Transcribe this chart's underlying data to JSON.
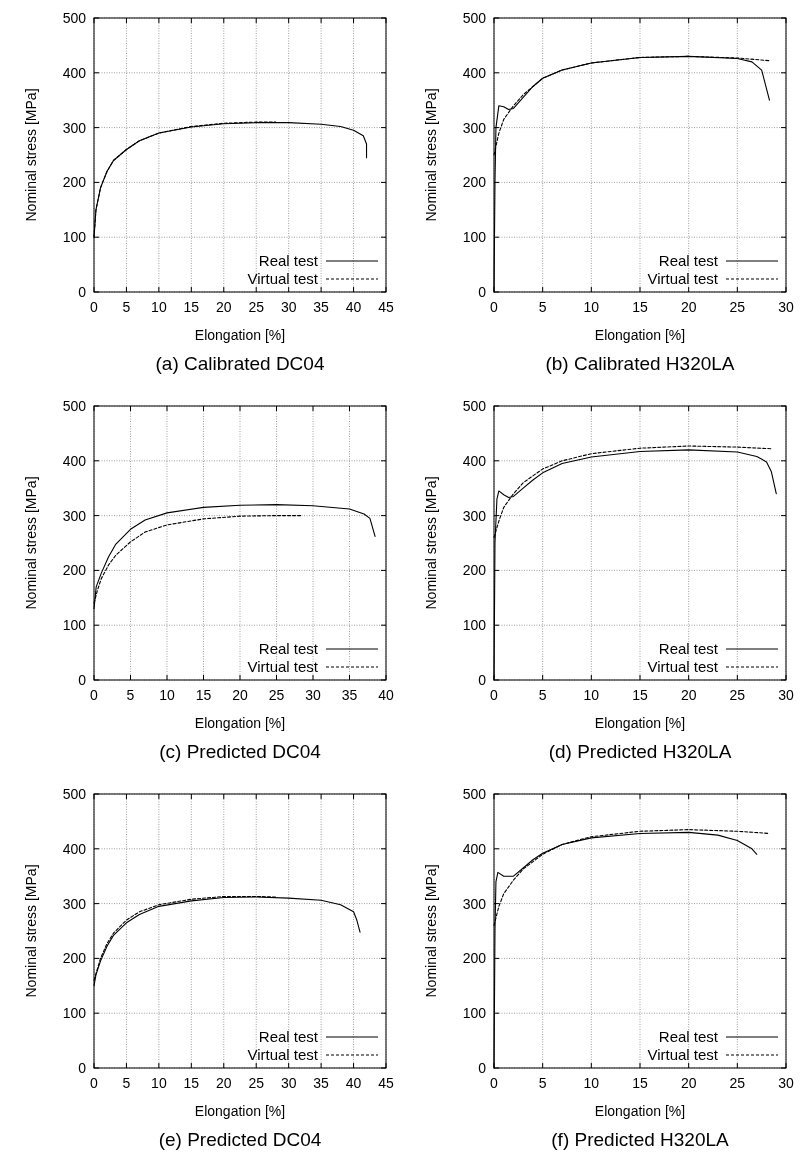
{
  "chart_data": [
    {
      "type": "line",
      "title": "(a) Calibrated DC04",
      "xlabel": "Elongation [%]",
      "ylabel": "Nominal stress [MPa]",
      "xlim": [
        0,
        45
      ],
      "xticks": [
        0,
        5,
        10,
        15,
        20,
        25,
        30,
        35,
        40,
        45
      ],
      "ylim": [
        0,
        500
      ],
      "yticks": [
        0,
        100,
        200,
        300,
        400,
        500
      ],
      "grid": true,
      "legend": "bottom right",
      "series": [
        {
          "name": "Real test",
          "color": "#000000",
          "line_style": "solid",
          "x": [
            0,
            0.3,
            1,
            2,
            3,
            5,
            7,
            10,
            15,
            20,
            25,
            30,
            35,
            38,
            40,
            41.5,
            42,
            42
          ],
          "values": [
            100,
            150,
            190,
            220,
            240,
            260,
            276,
            290,
            301,
            307,
            309,
            309,
            306,
            302,
            295,
            285,
            270,
            245
          ]
        },
        {
          "name": "Virtual test",
          "color": "#000000",
          "line_style": "dashed",
          "x": [
            0,
            0.3,
            1,
            2,
            3,
            5,
            7,
            10,
            15,
            20,
            25,
            28
          ],
          "values": [
            100,
            150,
            190,
            220,
            240,
            260,
            276,
            290,
            302,
            308,
            310,
            310
          ]
        }
      ]
    },
    {
      "type": "line",
      "title": "(b) Calibrated H320LA",
      "xlabel": "Elongation [%]",
      "ylabel": "Nominal stress [MPa]",
      "xlim": [
        0,
        30
      ],
      "xticks": [
        0,
        5,
        10,
        15,
        20,
        25,
        30
      ],
      "ylim": [
        0,
        500
      ],
      "yticks": [
        0,
        100,
        200,
        300,
        400,
        500
      ],
      "grid": true,
      "legend": "bottom right",
      "series": [
        {
          "name": "Real test",
          "color": "#000000",
          "line_style": "solid",
          "x": [
            0,
            0.1,
            0.2,
            0.5,
            1,
            1.5,
            2,
            3,
            4,
            5,
            7,
            10,
            15,
            20,
            25,
            26.5,
            27.5,
            28.3
          ],
          "values": [
            0,
            200,
            300,
            340,
            338,
            333,
            335,
            355,
            375,
            390,
            405,
            418,
            428,
            430,
            426,
            420,
            405,
            350
          ]
        },
        {
          "name": "Virtual test",
          "color": "#000000",
          "line_style": "dashed",
          "x": [
            0,
            0.5,
            1,
            2,
            3,
            5,
            7,
            10,
            15,
            20,
            25,
            28.4
          ],
          "values": [
            250,
            290,
            315,
            340,
            360,
            390,
            405,
            418,
            428,
            430,
            427,
            422
          ]
        }
      ]
    },
    {
      "type": "line",
      "title": "(c) Predicted DC04",
      "xlabel": "Elongation [%]",
      "ylabel": "Nominal stress [MPa]",
      "xlim": [
        0,
        40
      ],
      "xticks": [
        0,
        5,
        10,
        15,
        20,
        25,
        30,
        35,
        40
      ],
      "ylim": [
        0,
        500
      ],
      "yticks": [
        0,
        100,
        200,
        300,
        400,
        500
      ],
      "grid": true,
      "legend": "bottom right",
      "series": [
        {
          "name": "Real test",
          "color": "#000000",
          "line_style": "solid",
          "x": [
            0,
            0.3,
            1,
            2,
            3,
            5,
            7,
            10,
            15,
            20,
            25,
            30,
            35,
            37,
            37.8,
            38.5
          ],
          "values": [
            130,
            170,
            195,
            225,
            248,
            275,
            292,
            305,
            315,
            319,
            320,
            318,
            312,
            303,
            295,
            262
          ]
        },
        {
          "name": "Virtual test",
          "color": "#000000",
          "line_style": "dashed",
          "x": [
            0,
            0.5,
            1,
            2,
            3,
            5,
            7,
            10,
            15,
            20,
            25,
            28.3
          ],
          "values": [
            140,
            165,
            185,
            210,
            228,
            252,
            270,
            283,
            294,
            299,
            300,
            300
          ]
        }
      ]
    },
    {
      "type": "line",
      "title": "(d) Predicted H320LA",
      "xlabel": "Elongation [%]",
      "ylabel": "Nominal stress [MPa]",
      "xlim": [
        0,
        30
      ],
      "xticks": [
        0,
        5,
        10,
        15,
        20,
        25,
        30
      ],
      "ylim": [
        0,
        500
      ],
      "yticks": [
        0,
        100,
        200,
        300,
        400,
        500
      ],
      "grid": true,
      "legend": "bottom right",
      "series": [
        {
          "name": "Real test",
          "color": "#000000",
          "line_style": "solid",
          "x": [
            0,
            0.1,
            0.3,
            0.5,
            1,
            1.5,
            2,
            3,
            4,
            5,
            7,
            10,
            15,
            20,
            25,
            27,
            28,
            28.5,
            29
          ],
          "values": [
            0,
            250,
            330,
            345,
            338,
            333,
            335,
            350,
            365,
            378,
            395,
            407,
            417,
            420,
            416,
            408,
            398,
            380,
            340
          ]
        },
        {
          "name": "Virtual test",
          "color": "#000000",
          "line_style": "dashed",
          "x": [
            0,
            0.5,
            1,
            2,
            3,
            5,
            7,
            10,
            15,
            20,
            25,
            28.5
          ],
          "values": [
            260,
            290,
            315,
            340,
            360,
            385,
            400,
            413,
            423,
            427,
            425,
            422
          ]
        }
      ]
    },
    {
      "type": "line",
      "title": "(e) Predicted DC04",
      "xlabel": "Elongation [%]",
      "ylabel": "Nominal stress [MPa]",
      "xlim": [
        0,
        45
      ],
      "xticks": [
        0,
        5,
        10,
        15,
        20,
        25,
        30,
        35,
        40,
        45
      ],
      "ylim": [
        0,
        500
      ],
      "yticks": [
        0,
        100,
        200,
        300,
        400,
        500
      ],
      "grid": true,
      "legend": "bottom right",
      "series": [
        {
          "name": "Real test",
          "color": "#000000",
          "line_style": "solid",
          "x": [
            0,
            0.3,
            1,
            2,
            3,
            5,
            7,
            10,
            15,
            20,
            25,
            30,
            35,
            38,
            40,
            40.5,
            41
          ],
          "values": [
            150,
            170,
            195,
            222,
            242,
            265,
            280,
            295,
            305,
            311,
            312,
            310,
            306,
            298,
            285,
            270,
            248
          ]
        },
        {
          "name": "Virtual test",
          "color": "#000000",
          "line_style": "dashed",
          "x": [
            0,
            1,
            2,
            3,
            5,
            7,
            10,
            15,
            20,
            25,
            28
          ],
          "values": [
            160,
            200,
            227,
            246,
            270,
            285,
            298,
            308,
            313,
            313,
            312
          ]
        }
      ]
    },
    {
      "type": "line",
      "title": "(f) Predicted H320LA",
      "xlabel": "Elongation [%]",
      "ylabel": "Nominal stress [MPa]",
      "xlim": [
        0,
        30
      ],
      "xticks": [
        0,
        5,
        10,
        15,
        20,
        25,
        30
      ],
      "ylim": [
        0,
        500
      ],
      "yticks": [
        0,
        100,
        200,
        300,
        400,
        500
      ],
      "grid": true,
      "legend": "bottom right",
      "series": [
        {
          "name": "Real test",
          "color": "#000000",
          "line_style": "solid",
          "x": [
            0,
            0.1,
            0.2,
            0.4,
            1,
            2,
            3,
            4,
            5,
            7,
            10,
            15,
            20,
            23,
            25,
            26.5,
            27
          ],
          "values": [
            0,
            250,
            340,
            357,
            350,
            350,
            365,
            380,
            392,
            408,
            420,
            428,
            430,
            425,
            415,
            400,
            390
          ]
        },
        {
          "name": "Virtual test",
          "color": "#000000",
          "line_style": "dashed",
          "x": [
            0,
            0.5,
            1,
            2,
            3,
            5,
            7,
            10,
            15,
            20,
            25,
            28.3
          ],
          "values": [
            260,
            295,
            318,
            343,
            363,
            390,
            408,
            422,
            432,
            435,
            432,
            428
          ]
        }
      ]
    }
  ]
}
